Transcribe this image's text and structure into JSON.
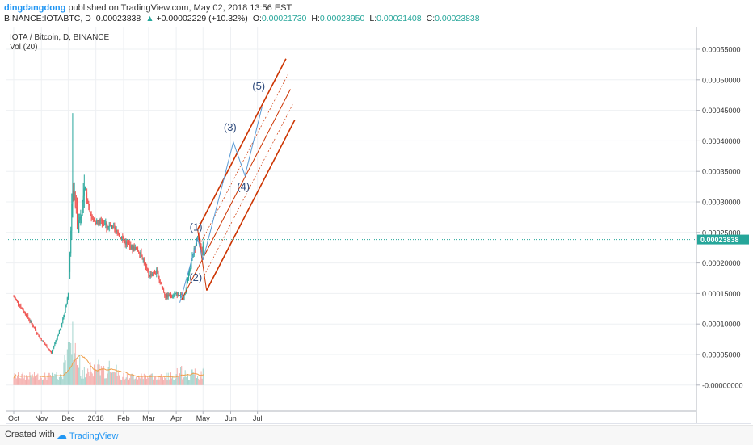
{
  "header": {
    "author": "dingdangdong",
    "published": "published on TradingView.com, May 02, 2018 13:56 EST",
    "symbol": "BINANCE:IOTABTC, D",
    "last": "0.00023838",
    "change_arrow": "▲",
    "change": "+0.00002229 (+10.32%)",
    "o_label": "O:",
    "o_value": "0.00021730",
    "h_label": "H:",
    "h_value": "0.00023950",
    "l_label": "L:",
    "l_value": "0.00021408",
    "c_label": "C:",
    "c_value": "0.00023838"
  },
  "legend": {
    "pair": "IOTA / Bitcoin, D, BINANCE",
    "volume": "Vol (20)"
  },
  "footer": {
    "created_with": "Created with",
    "brand": "TradingView"
  },
  "colors": {
    "up": "#26a69a",
    "down": "#ef5350",
    "vol_up": "#9ad0c8",
    "vol_down": "#f4a7a5",
    "pitchfork": "#cc3300",
    "wave_line": "#5b9bd5",
    "label_badge": "#26a69a",
    "vol_ma": "#f0a04b"
  },
  "chart_data": {
    "type": "candlestick",
    "x_axis_labels": [
      "Oct",
      "Nov",
      "Dec",
      "2018",
      "Feb",
      "Mar",
      "Apr",
      "May",
      "Jun",
      "Jul"
    ],
    "y_axis_labels": [
      "0.00055000",
      "0.00050000",
      "0.00045000",
      "0.00040000",
      "0.00035000",
      "0.00030000",
      "0.00025000",
      "0.00020000",
      "0.00015000",
      "0.00010000",
      "0.00005000",
      "-0.00000000"
    ],
    "last_price": "0.00023838",
    "wave_labels": [
      "(1)",
      "(2)",
      "(3)",
      "(4)",
      "(5)"
    ],
    "price_path": [
      {
        "x": "Oct 01",
        "y": 0.000145
      },
      {
        "x": "Oct 15",
        "y": 0.000115
      },
      {
        "x": "Oct 30",
        "y": 7.8e-05
      },
      {
        "x": "Nov 12",
        "y": 5.3e-05
      },
      {
        "x": "Nov 24",
        "y": 0.0001
      },
      {
        "x": "Dec 01",
        "y": 0.00015
      },
      {
        "x": "Dec 06",
        "y": 0.00033
      },
      {
        "x": "Dec 12",
        "y": 0.00026
      },
      {
        "x": "Dec 20",
        "y": 0.00032
      },
      {
        "x": "Dec 28",
        "y": 0.00027
      },
      {
        "x": "Jan 10",
        "y": 0.000265
      },
      {
        "x": "Jan 25",
        "y": 0.00025
      },
      {
        "x": "Feb 05",
        "y": 0.00023
      },
      {
        "x": "Feb 20",
        "y": 0.000218
      },
      {
        "x": "Mar 01",
        "y": 0.00018
      },
      {
        "x": "Mar 10",
        "y": 0.000185
      },
      {
        "x": "Mar 20",
        "y": 0.000145
      },
      {
        "x": "Apr 01",
        "y": 0.00015
      },
      {
        "x": "Apr 10",
        "y": 0.000145
      },
      {
        "x": "Apr 20",
        "y": 0.000215
      },
      {
        "x": "Apr 25",
        "y": 0.000245
      },
      {
        "x": "Apr 30",
        "y": 0.000215
      },
      {
        "x": "May 02",
        "y": 0.000238
      }
    ]
  }
}
